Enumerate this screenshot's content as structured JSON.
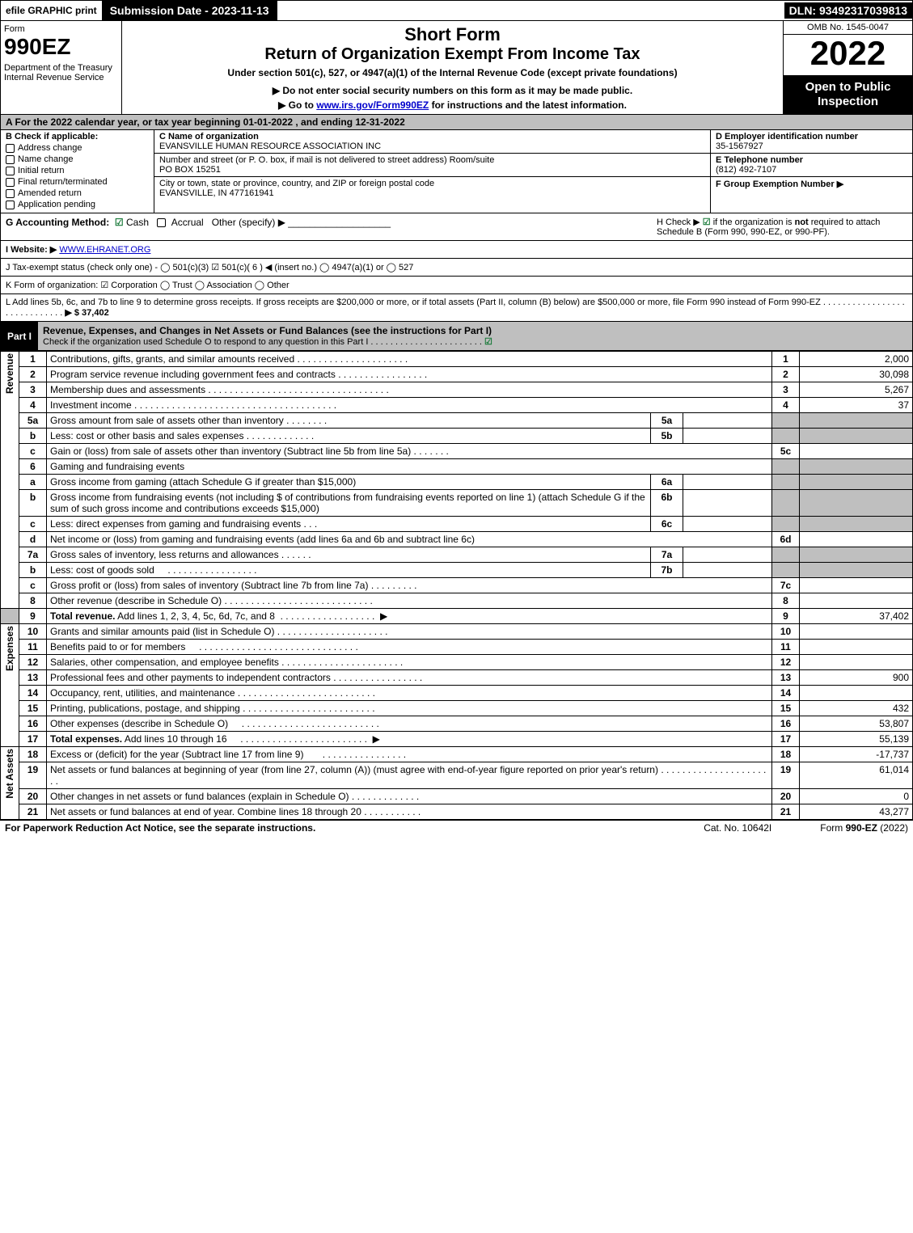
{
  "topbar": {
    "eprint": "efile GRAPHIC print",
    "subdate": "Submission Date - 2023-11-13",
    "dln": "DLN: 93492317039813"
  },
  "header": {
    "form_word": "Form",
    "form_num": "990EZ",
    "dept": "Department of the Treasury Internal Revenue Service",
    "title1": "Short Form",
    "title2": "Return of Organization Exempt From Income Tax",
    "subtitle": "Under section 501(c), 527, or 4947(a)(1) of the Internal Revenue Code (except private foundations)",
    "note": "▶ Do not enter social security numbers on this form as it may be made public.",
    "goto": "▶ Go to www.irs.gov/Form990EZ for instructions and the latest information.",
    "omb": "OMB No. 1545-0047",
    "year": "2022",
    "inspection": "Open to Public Inspection"
  },
  "sectionA": "A  For the 2022 calendar year, or tax year beginning 01-01-2022 , and ending 12-31-2022",
  "B": {
    "head": "B  Check if applicable:",
    "items": [
      "Address change",
      "Name change",
      "Initial return",
      "Final return/terminated",
      "Amended return",
      "Application pending"
    ]
  },
  "C": {
    "name_lab": "C Name of organization",
    "name": "EVANSVILLE HUMAN RESOURCE ASSOCIATION INC",
    "street_lab": "Number and street (or P. O. box, if mail is not delivered to street address)      Room/suite",
    "street": "PO BOX 15251",
    "city_lab": "City or town, state or province, country, and ZIP or foreign postal code",
    "city": "EVANSVILLE, IN  477161941"
  },
  "D": {
    "lab": "D Employer identification number",
    "val": "35-1567927"
  },
  "E": {
    "lab": "E Telephone number",
    "val": "(812) 492-7107"
  },
  "F": {
    "lab": "F Group Exemption Number   ▶",
    "val": ""
  },
  "G": {
    "lab": "G Accounting Method:",
    "cash": "Cash",
    "accrual": "Accrual",
    "other": "Other (specify) ▶"
  },
  "H": {
    "text1": "H  Check ▶",
    "text2": "if the organization is not required to attach Schedule B (Form 990, 990-EZ, or 990-PF)."
  },
  "I": {
    "lab": "I Website: ▶",
    "val": "WWW.EHRANET.ORG"
  },
  "J": "J Tax-exempt status (check only one) -  ◯ 501(c)(3)  ☑ 501(c)( 6 ) ◀ (insert no.)  ◯ 4947(a)(1) or  ◯ 527",
  "K": "K Form of organization:  ☑ Corporation  ◯ Trust  ◯ Association  ◯ Other",
  "L": {
    "text": "L Add lines 5b, 6c, and 7b to line 9 to determine gross receipts. If gross receipts are $200,000 or more, or if total assets (Part II, column (B) below) are $500,000 or more, file Form 990 instead of Form 990-EZ",
    "amount": "▶ $ 37,402"
  },
  "part1": {
    "label": "Part I",
    "title": "Revenue, Expenses, and Changes in Net Assets or Fund Balances (see the instructions for Part I)",
    "sub": "Check if the organization used Schedule O to respond to any question in this Part I"
  },
  "lines": {
    "l1": {
      "n": "1",
      "d": "Contributions, gifts, grants, and similar amounts received",
      "r": "1",
      "v": "2,000"
    },
    "l2": {
      "n": "2",
      "d": "Program service revenue including government fees and contracts",
      "r": "2",
      "v": "30,098"
    },
    "l3": {
      "n": "3",
      "d": "Membership dues and assessments",
      "r": "3",
      "v": "5,267"
    },
    "l4": {
      "n": "4",
      "d": "Investment income",
      "r": "4",
      "v": "37"
    },
    "l5a": {
      "n": "5a",
      "d": "Gross amount from sale of assets other than inventory",
      "m": "5a"
    },
    "l5b": {
      "n": "b",
      "d": "Less: cost or other basis and sales expenses",
      "m": "5b"
    },
    "l5c": {
      "n": "c",
      "d": "Gain or (loss) from sale of assets other than inventory (Subtract line 5b from line 5a)",
      "r": "5c",
      "v": ""
    },
    "l6": {
      "n": "6",
      "d": "Gaming and fundraising events"
    },
    "l6a": {
      "n": "a",
      "d": "Gross income from gaming (attach Schedule G if greater than $15,000)",
      "m": "6a"
    },
    "l6b": {
      "n": "b",
      "d": "Gross income from fundraising events (not including $                        of contributions from fundraising events reported on line 1) (attach Schedule G if the sum of such gross income and contributions exceeds $15,000)",
      "m": "6b"
    },
    "l6c": {
      "n": "c",
      "d": "Less: direct expenses from gaming and fundraising events",
      "m": "6c"
    },
    "l6d": {
      "n": "d",
      "d": "Net income or (loss) from gaming and fundraising events (add lines 6a and 6b and subtract line 6c)",
      "r": "6d",
      "v": ""
    },
    "l7a": {
      "n": "7a",
      "d": "Gross sales of inventory, less returns and allowances",
      "m": "7a"
    },
    "l7b": {
      "n": "b",
      "d": "Less: cost of goods sold",
      "m": "7b"
    },
    "l7c": {
      "n": "c",
      "d": "Gross profit or (loss) from sales of inventory (Subtract line 7b from line 7a)",
      "r": "7c",
      "v": ""
    },
    "l8": {
      "n": "8",
      "d": "Other revenue (describe in Schedule O)",
      "r": "8",
      "v": ""
    },
    "l9": {
      "n": "9",
      "d": "Total revenue. Add lines 1, 2, 3, 4, 5c, 6d, 7c, and 8",
      "r": "9",
      "v": "37,402",
      "arrow": true,
      "bold": true
    },
    "l10": {
      "n": "10",
      "d": "Grants and similar amounts paid (list in Schedule O)",
      "r": "10",
      "v": ""
    },
    "l11": {
      "n": "11",
      "d": "Benefits paid to or for members",
      "r": "11",
      "v": ""
    },
    "l12": {
      "n": "12",
      "d": "Salaries, other compensation, and employee benefits",
      "r": "12",
      "v": ""
    },
    "l13": {
      "n": "13",
      "d": "Professional fees and other payments to independent contractors",
      "r": "13",
      "v": "900"
    },
    "l14": {
      "n": "14",
      "d": "Occupancy, rent, utilities, and maintenance",
      "r": "14",
      "v": ""
    },
    "l15": {
      "n": "15",
      "d": "Printing, publications, postage, and shipping",
      "r": "15",
      "v": "432"
    },
    "l16": {
      "n": "16",
      "d": "Other expenses (describe in Schedule O)",
      "r": "16",
      "v": "53,807"
    },
    "l17": {
      "n": "17",
      "d": "Total expenses. Add lines 10 through 16",
      "r": "17",
      "v": "55,139",
      "arrow": true,
      "bold": true
    },
    "l18": {
      "n": "18",
      "d": "Excess or (deficit) for the year (Subtract line 17 from line 9)",
      "r": "18",
      "v": "-17,737"
    },
    "l19": {
      "n": "19",
      "d": "Net assets or fund balances at beginning of year (from line 27, column (A)) (must agree with end-of-year figure reported on prior year's return)",
      "r": "19",
      "v": "61,014"
    },
    "l20": {
      "n": "20",
      "d": "Other changes in net assets or fund balances (explain in Schedule O)",
      "r": "20",
      "v": "0"
    },
    "l21": {
      "n": "21",
      "d": "Net assets or fund balances at end of year. Combine lines 18 through 20",
      "r": "21",
      "v": "43,277"
    }
  },
  "rotated": {
    "revenue": "Revenue",
    "expenses": "Expenses",
    "netassets": "Net Assets"
  },
  "footer": {
    "l": "For Paperwork Reduction Act Notice, see the separate instructions.",
    "c": "Cat. No. 10642I",
    "r": "Form 990-EZ (2022)"
  },
  "colors": {
    "headerbg": "#bfbfbf",
    "black": "#000000",
    "green": "#1a7a3a"
  }
}
